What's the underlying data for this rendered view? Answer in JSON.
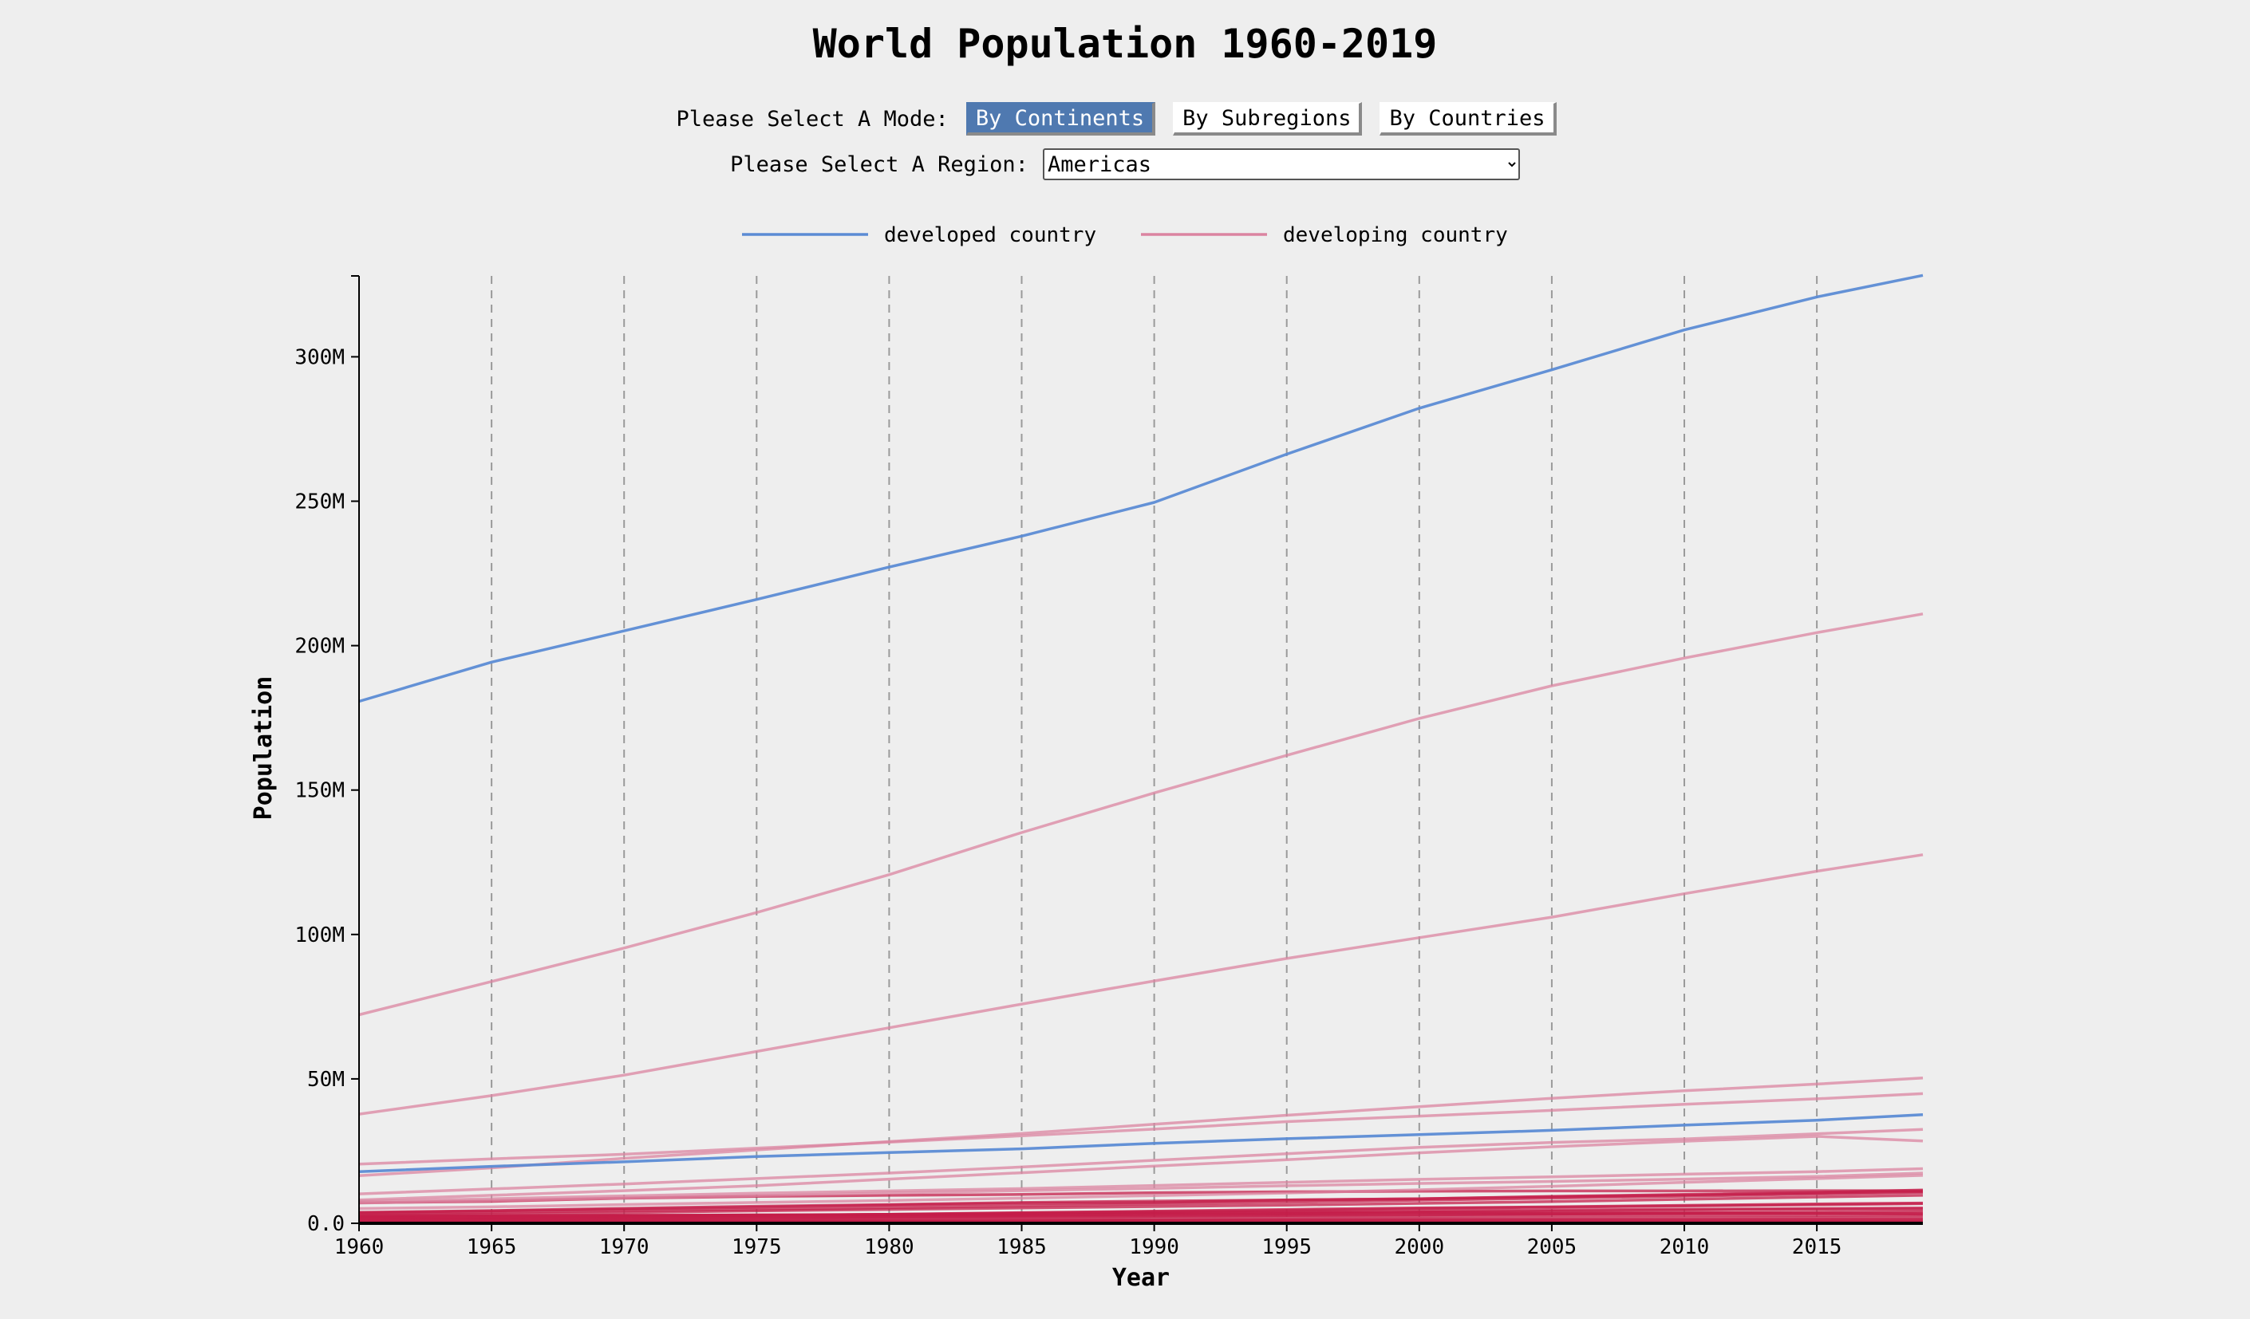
{
  "title": "World Population 1960-2019",
  "controls": {
    "mode_label": "Please Select A Mode:",
    "modes": [
      "By Continents",
      "By Subregions",
      "By Countries"
    ],
    "active_mode": 0,
    "region_label": "Please Select A Region:",
    "region_value": "Americas"
  },
  "colors": {
    "developed": "#5b8bd4",
    "developing": "#db84a0",
    "developing_dark": "#c41e4a"
  },
  "chart_data": {
    "type": "line",
    "xlabel": "Year",
    "ylabel": "Population",
    "xlim": [
      1960,
      2019
    ],
    "ylim": [
      0,
      328000000
    ],
    "x_ticks": [
      1960,
      1965,
      1970,
      1975,
      1980,
      1985,
      1990,
      1995,
      2000,
      2005,
      2010,
      2015
    ],
    "x_tick_labels": [
      "1960",
      "1965",
      "1970",
      "1975",
      "1980",
      "1985",
      "1990",
      "1995",
      "2000",
      "2005",
      "2010",
      "2015"
    ],
    "y_ticks": [
      0,
      50000000,
      100000000,
      150000000,
      200000000,
      250000000,
      300000000
    ],
    "y_tick_labels": [
      "0.0",
      "50M",
      "100M",
      "150M",
      "200M",
      "250M",
      "300M"
    ],
    "grid": "vertical dashed",
    "legend": {
      "placement": "top-center",
      "entries": [
        {
          "label": "developed country",
          "color": "#5b8bd4"
        },
        {
          "label": "developing country",
          "color": "#db84a0"
        }
      ]
    },
    "x": [
      1960,
      1965,
      1970,
      1975,
      1980,
      1985,
      1990,
      1995,
      2000,
      2005,
      2010,
      2015,
      2019
    ],
    "series": [
      {
        "group": "developed",
        "values": [
          180700000.0,
          194300000.0,
          205100000.0,
          216000000.0,
          227200000.0,
          237900000.0,
          249600000.0,
          266300000.0,
          282200000.0,
          295500000.0,
          309300000.0,
          320700000.0,
          328200000.0
        ]
      },
      {
        "group": "developed",
        "values": [
          17900000.0,
          19700000.0,
          21300000.0,
          23100000.0,
          24500000.0,
          25800000.0,
          27700000.0,
          29300000.0,
          30700000.0,
          32200000.0,
          34000000.0,
          35700000.0,
          37600000.0
        ]
      },
      {
        "group": "developing",
        "values": [
          72200000.0,
          83700000.0,
          95300000.0,
          107600000.0,
          120700000.0,
          135300000.0,
          149000000.0,
          162000000.0,
          174800000.0,
          186100000.0,
          195700000.0,
          204500000.0,
          211000000.0
        ]
      },
      {
        "group": "developing",
        "values": [
          37800000.0,
          44200000.0,
          51300000.0,
          59500000.0,
          67700000.0,
          75900000.0,
          83900000.0,
          91700000.0,
          98900000.0,
          106000000.0,
          114100000.0,
          121900000.0,
          127600000.0
        ]
      },
      {
        "group": "developing",
        "values": [
          16500000.0,
          19200000.0,
          22500000.0,
          25400000.0,
          28300000.0,
          31100000.0,
          34300000.0,
          37400000.0,
          40400000.0,
          43300000.0,
          45900000.0,
          48200000.0,
          50300000.0
        ]
      },
      {
        "group": "developing",
        "values": [
          20500000.0,
          22300000.0,
          23900000.0,
          26000000.0,
          28100000.0,
          30300000.0,
          32600000.0,
          35200000.0,
          37100000.0,
          39100000.0,
          41200000.0,
          43100000.0,
          44900000.0
        ]
      },
      {
        "group": "developing",
        "values": [
          10200000.0,
          11900000.0,
          13600000.0,
          15500000.0,
          17400000.0,
          19500000.0,
          21800000.0,
          24100000.0,
          26300000.0,
          28000000.0,
          29200000.0,
          31000000.0,
          32500000.0
        ]
      },
      {
        "group": "developing",
        "values": [
          8100000.0,
          9700000.0,
          11300000.0,
          13000000.0,
          15300000.0,
          17500000.0,
          19800000.0,
          22000000.0,
          24400000.0,
          26500000.0,
          28400000.0,
          30100000.0,
          28500000.0
        ]
      },
      {
        "group": "developing",
        "values": [
          7600000.0,
          8500000.0,
          9500000.0,
          10400000.0,
          11200000.0,
          12000000.0,
          13100000.0,
          14200000.0,
          15200000.0,
          16100000.0,
          17000000.0,
          17900000.0,
          18900000.0
        ]
      },
      {
        "group": "developing",
        "values": [
          7000000.0,
          7900000.0,
          8800000.0,
          9600000.0,
          10500000.0,
          11300000.0,
          12100000.0,
          13000000.0,
          13800000.0,
          14500000.0,
          15300000.0,
          16200000.0,
          17400000.0
        ]
      },
      {
        "group": "developing",
        "values": [
          5100000.0,
          5700000.0,
          6500000.0,
          7200000.0,
          7900000.0,
          8700000.0,
          9600000.0,
          10500000.0,
          11600000.0,
          12800000.0,
          14200000.0,
          15500000.0,
          16600000.0
        ]
      },
      {
        "group": "developing",
        "values": [
          3700000.0,
          4300000.0,
          4900000.0,
          5600000.0,
          6300000.0,
          6900000.0,
          7200000.0,
          8100000.0,
          8500000.0,
          9300000.0,
          10000000.0,
          10700000.0,
          11500000.0
        ]
      },
      {
        "group": "developing",
        "values": [
          3800000.0,
          4400000.0,
          5200000.0,
          5900000.0,
          6500000.0,
          7200000.0,
          7700000.0,
          8100000.0,
          8500000.0,
          9200000.0,
          9800000.0,
          10500000.0,
          11000000.0
        ]
      },
      {
        "group": "developing",
        "values": [
          3300000.0,
          3800000.0,
          4300000.0,
          4800000.0,
          5400000.0,
          6000000.0,
          6700000.0,
          7300000.0,
          8000000.0,
          8700000.0,
          9400000.0,
          10100000.0,
          10700000.0
        ]
      },
      {
        "group": "developing",
        "values": [
          7100000.0,
          7600000.0,
          8700000.0,
          9300000.0,
          9700000.0,
          10000000.0,
          10600000.0,
          10900000.0,
          11100000.0,
          11200000.0,
          11200000.0,
          11300000.0,
          11300000.0
        ]
      },
      {
        "group": "developing",
        "values": [
          2800000.0,
          3200000.0,
          3700000.0,
          4300000.0,
          4800000.0,
          5300000.0,
          5800000.0,
          6300000.0,
          6900000.0,
          7500000.0,
          8300000.0,
          9100000.0,
          9700000.0
        ]
      },
      {
        "group": "developing",
        "values": [
          1900000.0,
          2200000.0,
          2500000.0,
          2800000.0,
          3100000.0,
          3700000.0,
          4200000.0,
          4800000.0,
          5300000.0,
          5700000.0,
          6200000.0,
          6700000.0,
          7000000.0
        ]
      },
      {
        "group": "developing",
        "values": [
          1700000.0,
          1900000.0,
          2300000.0,
          2700000.0,
          3100000.0,
          3600000.0,
          4100000.0,
          4500000.0,
          5100000.0,
          5600000.0,
          6000000.0,
          6400000.0,
          6800000.0
        ]
      },
      {
        "group": "developing",
        "values": [
          2000000.0,
          2300000.0,
          2600000.0,
          2900000.0,
          3100000.0,
          3400000.0,
          3700000.0,
          4000000.0,
          4300000.0,
          4600000.0,
          4900000.0,
          5100000.0,
          5300000.0
        ]
      },
      {
        "group": "developing",
        "values": [
          1300000.0,
          1500000.0,
          1700000.0,
          2000000.0,
          2400000.0,
          2700000.0,
          3100000.0,
          3400000.0,
          3900000.0,
          4200000.0,
          4600000.0,
          4900000.0,
          5000000.0
        ]
      },
      {
        "group": "developing",
        "values": [
          1100000.0,
          1300000.0,
          1500000.0,
          1700000.0,
          2000000.0,
          2200000.0,
          2400000.0,
          2700000.0,
          2900000.0,
          3200000.0,
          3500000.0,
          3900000.0,
          4200000.0
        ]
      },
      {
        "group": "developing",
        "values": [
          2600000.0,
          2700000.0,
          2800000.0,
          2900000.0,
          2900000.0,
          3000000.0,
          3100000.0,
          3200000.0,
          3300000.0,
          3300000.0,
          3400000.0,
          3400000.0,
          3500000.0
        ]
      },
      {
        "group": "developing",
        "values": [
          2400000.0,
          2600000.0,
          2700000.0,
          2800000.0,
          3000000.0,
          3200000.0,
          3500000.0,
          3700000.0,
          3800000.0,
          3600000.0,
          3700000.0,
          3500000.0,
          3200000.0
        ]
      },
      {
        "group": "developing",
        "values": [
          1600000.0,
          1700000.0,
          1900000.0,
          2000000.0,
          2100000.0,
          2300000.0,
          2400000.0,
          2500000.0,
          2600000.0,
          2700000.0,
          2800000.0,
          2800000.0,
          2900000.0
        ]
      },
      {
        "group": "developing",
        "values": [
          900000.0,
          1000000.0,
          1100000.0,
          1200000.0,
          1300000.0,
          1400000.0,
          1500000.0,
          1600000.0,
          1700000.0,
          1800000.0,
          1900000.0,
          2000000.0,
          2100000.0
        ]
      },
      {
        "group": "developing",
        "values": [
          600000.0,
          700000.0,
          800000.0,
          900000.0,
          1000000.0,
          1100000.0,
          1200000.0,
          1300000.0,
          1300000.0,
          1300000.0,
          1300000.0,
          1400000.0,
          1400000.0
        ]
      },
      {
        "group": "developing",
        "values": [
          500000.0,
          600000.0,
          700000.0,
          700000.0,
          800000.0,
          800000.0,
          900000.0,
          900000.0,
          900000.0,
          1000000.0,
          1000000.0,
          1000000.0,
          1100000.0
        ]
      },
      {
        "group": "developing",
        "values": [
          300000.0,
          350000.0,
          400000.0,
          450000.0,
          500000.0,
          550000.0,
          600000.0,
          650000.0,
          700000.0,
          750000.0,
          800000.0,
          800000.0,
          800000.0
        ]
      },
      {
        "group": "developing",
        "values": [
          200000.0,
          220000.0,
          250000.0,
          270000.0,
          300000.0,
          320000.0,
          350000.0,
          380000.0,
          400000.0,
          420000.0,
          450000.0,
          470000.0,
          500000.0
        ]
      },
      {
        "group": "developing",
        "values": [
          100000.0,
          120000.0,
          140000.0,
          150000.0,
          170000.0,
          190000.0,
          200000.0,
          220000.0,
          240000.0,
          260000.0,
          280000.0,
          290000.0,
          300000.0
        ]
      }
    ]
  }
}
